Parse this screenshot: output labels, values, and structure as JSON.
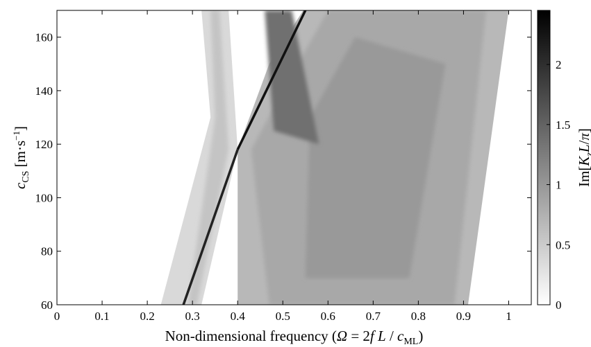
{
  "chart_data": {
    "type": "heatmap",
    "title": "",
    "xlabel": "Non-dimensional frequency (Ω = 2 f L / c_ML)",
    "ylabel": "c_CS [m·s⁻¹]",
    "xlim": [
      0,
      1.05
    ],
    "ylim": [
      60,
      170
    ],
    "x_ticks": [
      0,
      0.1,
      0.2,
      0.3,
      0.4,
      0.5,
      0.6,
      0.7,
      0.8,
      0.9,
      1
    ],
    "x_tick_labels": [
      "0",
      "0.1",
      "0.2",
      "0.3",
      "0.4",
      "0.5",
      "0.6",
      "0.7",
      "0.8",
      "0.9",
      "1"
    ],
    "y_ticks": [
      60,
      80,
      100,
      120,
      140,
      160
    ],
    "y_tick_labels": [
      "60",
      "80",
      "100",
      "120",
      "140",
      "160"
    ],
    "colorbar": {
      "label": "Im[K_z L/π]",
      "range": [
        0,
        2.45
      ],
      "ticks": [
        0,
        0.5,
        1,
        1.5,
        2
      ],
      "tick_labels": [
        "0",
        "0.5",
        "1",
        "1.5",
        "2"
      ],
      "colormap": "gray (white = 0, black = max)"
    },
    "crossing_point": {
      "x": 0.4,
      "y": 118
    },
    "regions": [
      {
        "name": "left band",
        "x_at_y60": [
          0.23,
          0.32
        ],
        "x_at_y170": [
          0.32,
          0.38
        ],
        "value_range": [
          0.05,
          0.3
        ]
      },
      {
        "name": "sharp ridge",
        "x_at_y60": 0.28,
        "x_at_y118": 0.4,
        "x_at_y170": 0.55,
        "peak_value": 2.45
      },
      {
        "name": "right band",
        "x_left_boundary": [
          0.4,
          0.47
        ],
        "x_at_y60_right": 0.91,
        "x_at_y170_right": 1.0,
        "value_range": [
          0.3,
          1.5
        ]
      }
    ]
  }
}
